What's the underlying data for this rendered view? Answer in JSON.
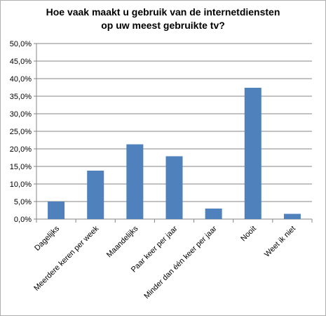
{
  "chart_data": {
    "type": "bar",
    "title_lines": [
      "Hoe vaak maakt u gebruik van de internetdiensten",
      "op uw meest gebruikte tv?"
    ],
    "categories": [
      "Dagelijks",
      "Meerdere keren per week",
      "Maandelijks",
      "Paar keer per jaar",
      "Minder dan één keer per jaar",
      "Nooit",
      "Weet ik niet"
    ],
    "values": [
      5.0,
      13.8,
      21.3,
      17.9,
      3.0,
      37.4,
      1.5
    ],
    "yticks": [
      "0,0%",
      "5,0%",
      "10,0%",
      "15,0%",
      "20,0%",
      "25,0%",
      "30,0%",
      "35,0%",
      "40,0%",
      "45,0%",
      "50,0%"
    ],
    "ylim": [
      0,
      50
    ],
    "grid": true,
    "legend": "none",
    "bar_color": "#4f81bd"
  }
}
